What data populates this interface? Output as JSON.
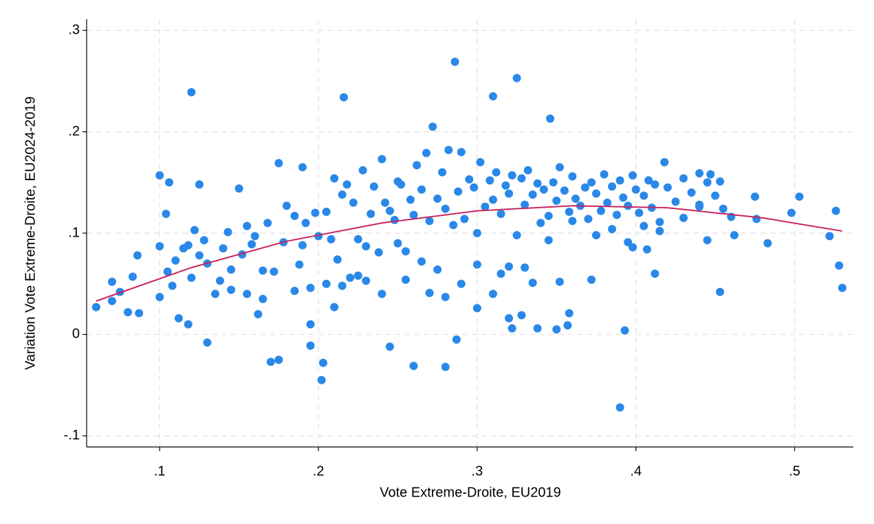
{
  "chart_data": {
    "type": "scatter",
    "xlabel": "Vote Extreme-Droite, EU2019",
    "ylabel": "Variation Vote Extreme-Droite, EU2024-2019",
    "xlim": [
      0.054,
      0.537
    ],
    "ylim": [
      -0.111,
      0.311
    ],
    "xticks": [
      {
        "value": 0.1,
        "label": ".1"
      },
      {
        "value": 0.2,
        "label": ".2"
      },
      {
        "value": 0.3,
        "label": ".3"
      },
      {
        "value": 0.4,
        "label": ".4"
      },
      {
        "value": 0.5,
        "label": ".5"
      }
    ],
    "yticks": [
      {
        "value": -0.1,
        "label": "-.1"
      },
      {
        "value": 0,
        "label": "0"
      },
      {
        "value": 0.1,
        "label": ".1"
      },
      {
        "value": 0.2,
        "label": ".2"
      },
      {
        "value": 0.3,
        "label": ".3"
      }
    ],
    "grid": true,
    "series": [
      {
        "type": "scatter",
        "color": "#2a88e8",
        "x": [
          0.12,
          0.286,
          0.325,
          0.216,
          0.31,
          0.346,
          0.39,
          0.202,
          0.203,
          0.17,
          0.175,
          0.13,
          0.26,
          0.28,
          0.287,
          0.245,
          0.195,
          0.06,
          0.07,
          0.07,
          0.075,
          0.08,
          0.087,
          0.083,
          0.086,
          0.1,
          0.104,
          0.106,
          0.1,
          0.125,
          0.122,
          0.175,
          0.19,
          0.15,
          0.53,
          0.528,
          0.526,
          0.522,
          0.503,
          0.498,
          0.483,
          0.475,
          0.476,
          0.462,
          0.453,
          0.453,
          0.447,
          0.44,
          0.445,
          0.412,
          0.407,
          0.398,
          0.393,
          0.35,
          0.338,
          0.32,
          0.322,
          0.357,
          0.358,
          0.352,
          0.335,
          0.372,
          0.328,
          0.1,
          0.105,
          0.11,
          0.112,
          0.115,
          0.118,
          0.12,
          0.125,
          0.128,
          0.13,
          0.135,
          0.14,
          0.143,
          0.145,
          0.152,
          0.155,
          0.158,
          0.16,
          0.162,
          0.165,
          0.168,
          0.172,
          0.178,
          0.18,
          0.185,
          0.188,
          0.19,
          0.192,
          0.195,
          0.198,
          0.2,
          0.205,
          0.208,
          0.21,
          0.212,
          0.215,
          0.218,
          0.22,
          0.222,
          0.225,
          0.228,
          0.23,
          0.233,
          0.235,
          0.238,
          0.24,
          0.242,
          0.245,
          0.248,
          0.25,
          0.252,
          0.255,
          0.258,
          0.26,
          0.262,
          0.265,
          0.268,
          0.27,
          0.272,
          0.275,
          0.278,
          0.28,
          0.282,
          0.285,
          0.288,
          0.29,
          0.292,
          0.295,
          0.298,
          0.3,
          0.302,
          0.305,
          0.308,
          0.31,
          0.312,
          0.315,
          0.318,
          0.32,
          0.322,
          0.325,
          0.328,
          0.33,
          0.332,
          0.335,
          0.338,
          0.34,
          0.342,
          0.345,
          0.348,
          0.35,
          0.352,
          0.355,
          0.358,
          0.36,
          0.362,
          0.365,
          0.368,
          0.37,
          0.372,
          0.375,
          0.378,
          0.38,
          0.382,
          0.385,
          0.388,
          0.39,
          0.392,
          0.395,
          0.398,
          0.4,
          0.402,
          0.405,
          0.408,
          0.41,
          0.412,
          0.415,
          0.418,
          0.42,
          0.425,
          0.43,
          0.435,
          0.44,
          0.445,
          0.45,
          0.455,
          0.46,
          0.21,
          0.225,
          0.24,
          0.255,
          0.265,
          0.275,
          0.29,
          0.3,
          0.315,
          0.33,
          0.345,
          0.36,
          0.375,
          0.385,
          0.395,
          0.405,
          0.415,
          0.43,
          0.44,
          0.27,
          0.28,
          0.3,
          0.31,
          0.32,
          0.25,
          0.23,
          0.215,
          0.205,
          0.195,
          0.185,
          0.165,
          0.155,
          0.145,
          0.138,
          0.118,
          0.108
        ],
        "values": [
          0.239,
          0.269,
          0.253,
          0.234,
          0.235,
          0.213,
          -0.072,
          -0.045,
          -0.028,
          -0.027,
          -0.025,
          -0.008,
          -0.031,
          -0.032,
          -0.005,
          -0.012,
          -0.011,
          0.027,
          0.033,
          0.052,
          0.042,
          0.022,
          0.021,
          0.057,
          0.078,
          0.157,
          0.119,
          0.15,
          0.087,
          0.148,
          0.103,
          0.169,
          0.165,
          0.144,
          0.046,
          0.068,
          0.122,
          0.097,
          0.136,
          0.12,
          0.09,
          0.136,
          0.114,
          0.098,
          0.042,
          0.151,
          0.158,
          0.159,
          0.093,
          0.06,
          0.084,
          0.086,
          0.004,
          0.005,
          0.006,
          0.016,
          0.006,
          0.009,
          0.021,
          0.052,
          0.051,
          0.054,
          0.019,
          0.037,
          0.062,
          0.073,
          0.016,
          0.085,
          0.01,
          0.056,
          0.078,
          0.093,
          0.07,
          0.04,
          0.085,
          0.101,
          0.064,
          0.079,
          0.107,
          0.089,
          0.097,
          0.02,
          0.063,
          0.11,
          0.062,
          0.091,
          0.127,
          0.117,
          0.069,
          0.088,
          0.11,
          0.01,
          0.12,
          0.097,
          0.121,
          0.094,
          0.154,
          0.074,
          0.138,
          0.148,
          0.056,
          0.13,
          0.094,
          0.162,
          0.087,
          0.119,
          0.146,
          0.081,
          0.173,
          0.13,
          0.122,
          0.113,
          0.151,
          0.148,
          0.082,
          0.133,
          0.118,
          0.167,
          0.143,
          0.179,
          0.112,
          0.205,
          0.134,
          0.16,
          0.124,
          0.182,
          0.108,
          0.141,
          0.18,
          0.114,
          0.153,
          0.145,
          0.1,
          0.17,
          0.126,
          0.152,
          0.133,
          0.16,
          0.119,
          0.147,
          0.139,
          0.157,
          0.098,
          0.154,
          0.128,
          0.162,
          0.138,
          0.149,
          0.11,
          0.143,
          0.117,
          0.15,
          0.132,
          0.165,
          0.142,
          0.121,
          0.156,
          0.134,
          0.127,
          0.145,
          0.114,
          0.15,
          0.139,
          0.122,
          0.158,
          0.13,
          0.146,
          0.118,
          0.152,
          0.135,
          0.127,
          0.157,
          0.143,
          0.12,
          0.137,
          0.152,
          0.125,
          0.148,
          0.111,
          0.17,
          0.145,
          0.131,
          0.154,
          0.14,
          0.126,
          0.15,
          0.137,
          0.124,
          0.116,
          0.027,
          0.058,
          0.04,
          0.054,
          0.072,
          0.064,
          0.05,
          0.026,
          0.06,
          0.066,
          0.093,
          0.112,
          0.098,
          0.104,
          0.091,
          0.107,
          0.102,
          0.115,
          0.128,
          0.041,
          0.037,
          0.069,
          0.04,
          0.067,
          0.09,
          0.053,
          0.048,
          0.05,
          0.046,
          0.043,
          0.035,
          0.04,
          0.044,
          0.053,
          0.088,
          0.048
        ]
      },
      {
        "type": "line",
        "color": "#c8245e",
        "x": [
          0.06,
          0.12,
          0.18,
          0.24,
          0.3,
          0.36,
          0.42,
          0.48,
          0.53
        ],
        "values": [
          0.033,
          0.066,
          0.092,
          0.11,
          0.122,
          0.127,
          0.125,
          0.115,
          0.102
        ]
      }
    ]
  }
}
